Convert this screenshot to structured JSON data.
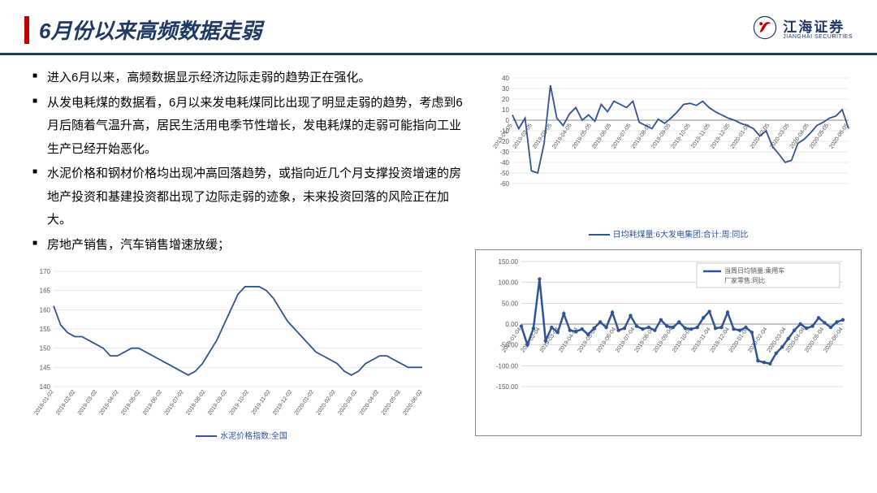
{
  "header": {
    "title": "6月份以来高频数据走弱",
    "logo_cn": "江海证券",
    "logo_en": "JIANGHAI SECURITIES"
  },
  "bullets": [
    "进入6月以来，高频数据显示经济边际走弱的趋势正在强化。",
    "从发电耗煤的数据看，6月以来发电耗煤同比出现了明显走弱的趋势，考虑到6月后随着气温升高，居民生活用电季节性增长，发电耗煤的走弱可能指向工业生产已经开始恶化。",
    "水泥价格和钢材价格均出现冲高回落趋势，或指向近几个月支撑投资增速的房地产投资和基建投资都出现了边际走弱的迹象，未来投资回落的风险正在加大。",
    "房地产销售，汽车销售增速放缓；"
  ],
  "chart1": {
    "legend": "日均耗煤量:6大发电集团:合计:周:同比",
    "ylim": [
      -60,
      40
    ],
    "ytick_step": 10,
    "line_color": "#2e5396",
    "grid_color": "#d0d0d0",
    "x_labels": [
      "2019-01-05",
      "2019-02-05",
      "2019-03-05",
      "2019-04-05",
      "2019-05-05",
      "2019-06-05",
      "2019-07-05",
      "2019-08-05",
      "2019-09-05",
      "2019-10-05",
      "2019-11-05",
      "2019-12-05",
      "2020-01-05",
      "2020-02-05",
      "2020-03-05",
      "2020-04-05",
      "2020-05-05",
      "2020-06-05"
    ],
    "values": [
      5,
      -8,
      2,
      -48,
      -50,
      -22,
      33,
      2,
      -5,
      6,
      12,
      0,
      5,
      -1,
      15,
      8,
      18,
      15,
      12,
      18,
      -2,
      -5,
      -8,
      1,
      -3,
      2,
      8,
      15,
      16,
      14,
      18,
      12,
      8,
      5,
      2,
      0,
      -3,
      -5,
      -8,
      -15,
      -10,
      -25,
      -32,
      -40,
      -38,
      -22,
      -18,
      -12,
      -5,
      -2,
      2,
      4,
      10,
      -8
    ]
  },
  "chart2": {
    "legend": "水泥价格指数:全国",
    "ylim": [
      140,
      170
    ],
    "ytick_step": 5,
    "line_color": "#2e5396",
    "grid_color": "#d0d0d0",
    "x_labels": [
      "2019-01-02",
      "2019-02-02",
      "2019-03-02",
      "2019-04-02",
      "2019-05-02",
      "2019-06-02",
      "2019-07-02",
      "2019-08-02",
      "2019-09-02",
      "2019-10-02",
      "2019-11-02",
      "2019-12-02",
      "2020-01-02",
      "2020-02-02",
      "2020-03-02",
      "2020-04-02",
      "2020-05-02",
      "2020-06-02"
    ],
    "values": [
      161,
      156,
      154,
      153,
      153,
      152,
      151,
      150,
      148,
      148,
      149,
      150,
      150,
      149,
      148,
      147,
      146,
      145,
      144,
      143,
      144,
      146,
      149,
      152,
      156,
      160,
      164,
      166,
      166,
      166,
      165,
      163,
      160,
      157,
      155,
      153,
      151,
      149,
      148,
      147,
      146,
      144,
      143,
      144,
      146,
      147,
      148,
      148,
      147,
      146,
      145,
      145,
      145
    ]
  },
  "chart3": {
    "legend": "当周日均销量:乘用车:厂家零售:同比",
    "ylim": [
      -150,
      150
    ],
    "ytick_step": 50,
    "line_color": "#2e5396",
    "grid_color": "#bbb",
    "x_labels": [
      "2019-01-04",
      "2019-02-04",
      "2019-03-04",
      "2019-04-04",
      "2019-05-04",
      "2019-06-04",
      "2019-07-04",
      "2019-08-04",
      "2019-09-04",
      "2019-10-04",
      "2019-11-04",
      "2019-12-04",
      "2020-01-04",
      "2020-02-04",
      "2020-03-04",
      "2020-04-04",
      "2020-05-04",
      "2020-06-04"
    ],
    "values": [
      -5,
      -50,
      -10,
      108,
      -40,
      -8,
      -20,
      25,
      -15,
      -18,
      -12,
      -25,
      -10,
      5,
      -8,
      28,
      -15,
      -10,
      20,
      -5,
      -12,
      -8,
      -15,
      10,
      -5,
      -8,
      5,
      -10,
      -12,
      -8,
      15,
      30,
      -10,
      -8,
      28,
      -12,
      -15,
      -8,
      -20,
      -88,
      -92,
      -95,
      -70,
      -55,
      -35,
      -15,
      0,
      -10,
      -5,
      15,
      3,
      -8,
      5,
      10
    ]
  }
}
